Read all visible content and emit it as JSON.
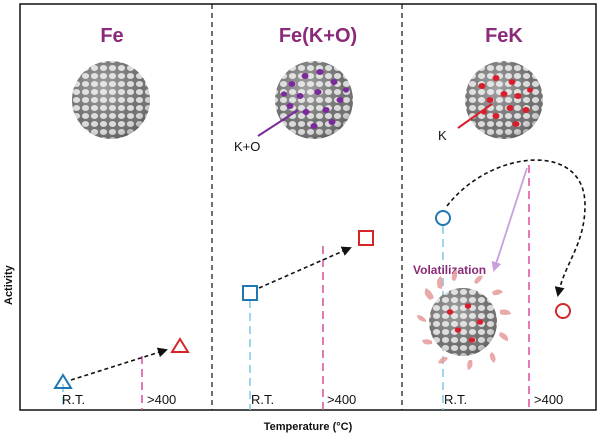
{
  "panels": [
    {
      "title": "Fe",
      "rt_label": "R.T.",
      "hot_label": ">400"
    },
    {
      "title": "Fe(K+O)",
      "rt_label": "R.T.",
      "hot_label": ">400",
      "callout": "K+O"
    },
    {
      "title": "FeK",
      "rt_label": "R.T.",
      "hot_label": ">400",
      "callout": "K",
      "volatilization_label": "Volatilization"
    }
  ],
  "axes": {
    "y_label": "Activity",
    "x_label": "Temperature (°C)"
  },
  "colors": {
    "title": "#8a2a78",
    "potassium_oxygen": "#7a2a9a",
    "potassium": "#d81e2c",
    "rt_marker": "#1f78b4",
    "hot_marker": "#d62728",
    "rt_guide": "#7ec8e3",
    "hot_guide": "#d94fa0",
    "volatilization_arrow": "#c9a0dc"
  },
  "markers": {
    "panel1": {
      "rt_shape": "triangle",
      "hot_shape": "triangle"
    },
    "panel2": {
      "rt_shape": "square",
      "hot_shape": "square"
    },
    "panel3": {
      "rt_shape": "circle",
      "hot_shape": "circle"
    }
  }
}
